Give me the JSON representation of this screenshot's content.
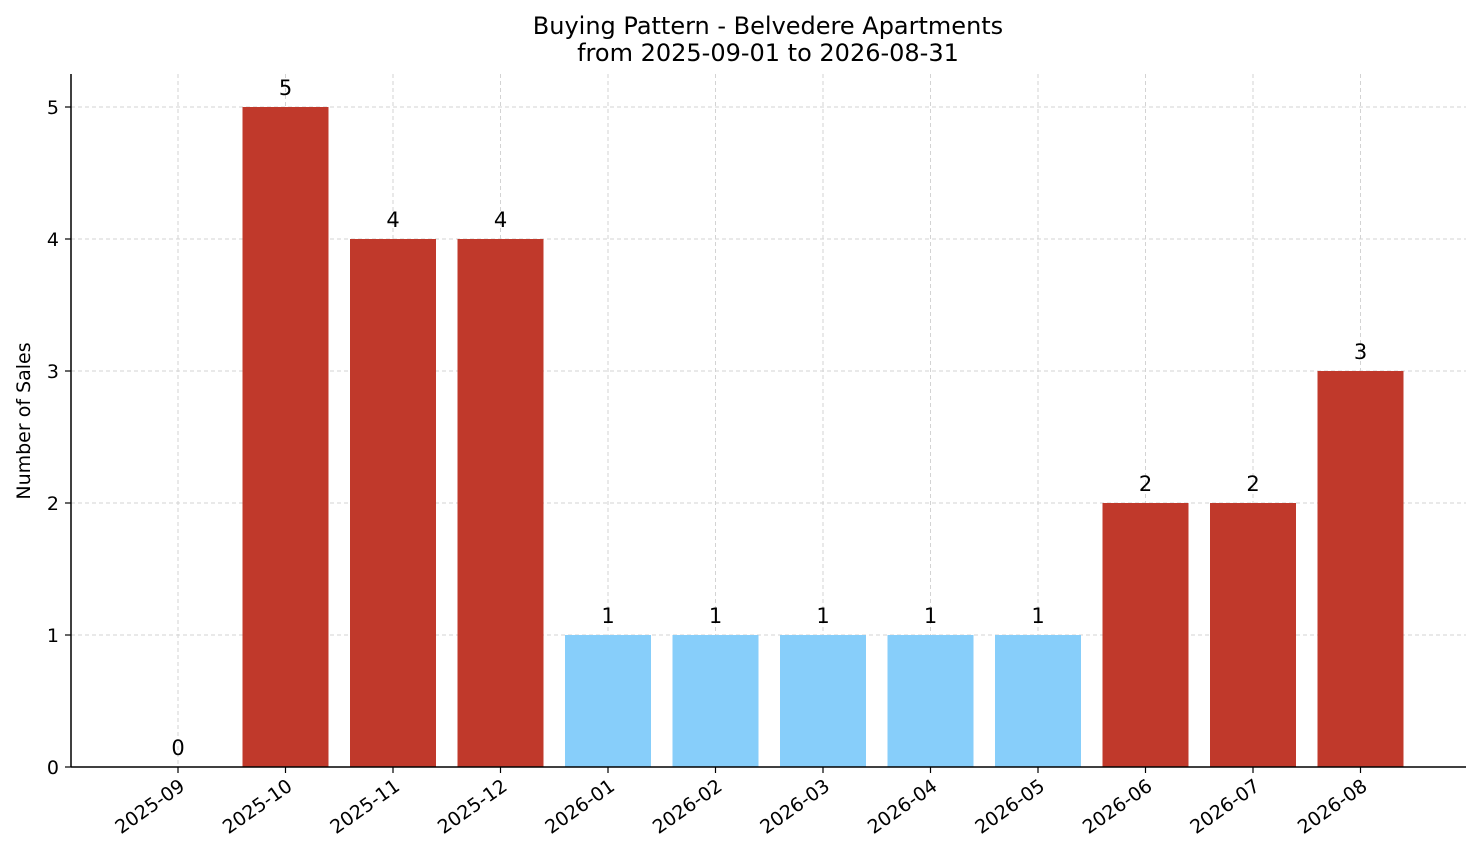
{
  "chart_data": {
    "type": "bar",
    "title": "Buying Pattern - Belvedere Apartments",
    "subtitle": "from 2025-09-01 to 2026-08-31",
    "xlabel": "",
    "ylabel": "Number of Sales",
    "categories": [
      "2025-09",
      "2025-10",
      "2025-11",
      "2025-12",
      "2026-01",
      "2026-02",
      "2026-03",
      "2026-04",
      "2026-05",
      "2026-06",
      "2026-07",
      "2026-08"
    ],
    "values": [
      0,
      5,
      4,
      4,
      1,
      1,
      1,
      1,
      1,
      2,
      2,
      3
    ],
    "bar_colors": [
      "#c0392b",
      "#c0392b",
      "#c0392b",
      "#c0392b",
      "#87cefa",
      "#87cefa",
      "#87cefa",
      "#87cefa",
      "#87cefa",
      "#c0392b",
      "#c0392b",
      "#c0392b"
    ],
    "yticks": [
      0,
      1,
      2,
      3,
      4,
      5
    ],
    "ylim": [
      0,
      5.25
    ],
    "grid": true,
    "data_labels": true
  }
}
